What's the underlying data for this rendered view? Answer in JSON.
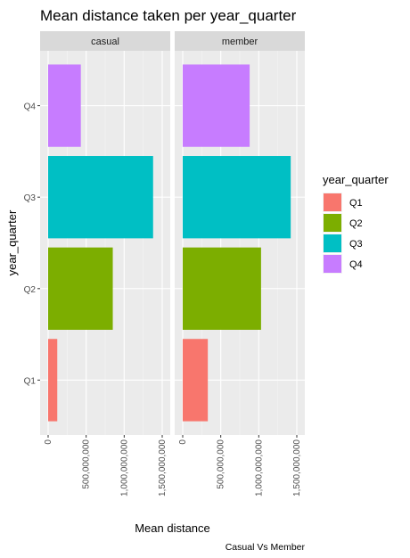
{
  "chart_data": {
    "type": "bar",
    "orientation": "horizontal",
    "title": "Mean distance taken per year_quarter",
    "xlabel": "Mean distance",
    "ylabel": "year_quarter",
    "caption": "Casual Vs Member",
    "categories": [
      "Q1",
      "Q2",
      "Q3",
      "Q4"
    ],
    "xlim": [
      0,
      1500000000
    ],
    "x_ticks": [
      0,
      500000000,
      1000000000,
      1500000000
    ],
    "x_tick_labels": [
      "0",
      "500,000,000",
      "1,000,000,000",
      "1,500,000,000"
    ],
    "grid": true,
    "legend": {
      "title": "year_quarter",
      "position": "right",
      "entries": [
        {
          "label": "Q1",
          "color": "#F8766D"
        },
        {
          "label": "Q2",
          "color": "#7CAE00"
        },
        {
          "label": "Q3",
          "color": "#00BFC4"
        },
        {
          "label": "Q4",
          "color": "#C77CFF"
        }
      ]
    },
    "facets": [
      {
        "name": "casual",
        "values": [
          120000000,
          850000000,
          1380000000,
          430000000
        ]
      },
      {
        "name": "member",
        "values": [
          330000000,
          1030000000,
          1420000000,
          880000000
        ]
      }
    ]
  }
}
